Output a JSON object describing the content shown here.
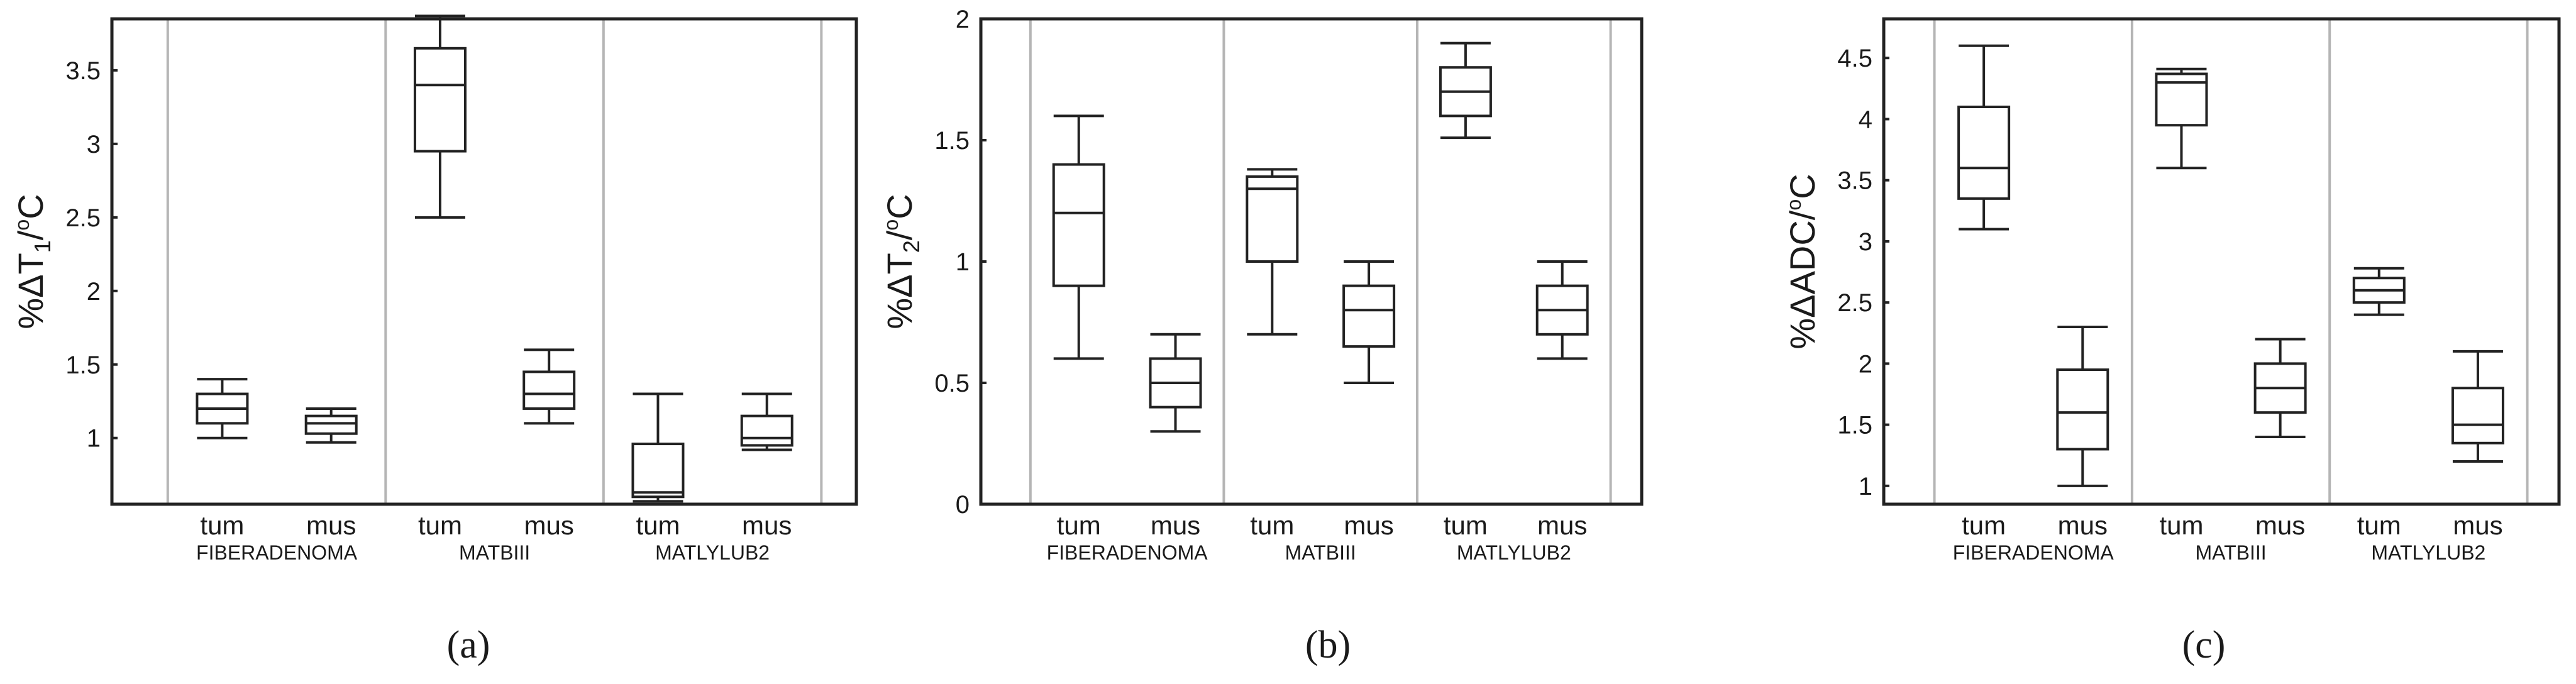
{
  "chart_data": [
    {
      "type": "box",
      "panel_label": "(a)",
      "ylabel": "%ΔT1/°C",
      "ylabel_parts": [
        "%ΔT",
        "1",
        "/",
        "o",
        "C"
      ],
      "ylim": [
        0.55,
        3.85
      ],
      "yticks": [
        {
          "value": 1,
          "label": "1"
        },
        {
          "value": 1.5,
          "label": "1.5"
        },
        {
          "value": 2,
          "label": "2"
        },
        {
          "value": 2.5,
          "label": "2.5"
        },
        {
          "value": 3,
          "label": "3"
        },
        {
          "value": 3.5,
          "label": "3.5"
        }
      ],
      "groups": [
        "FIBERADENOMA",
        "MATBIII",
        "MATLYLUB2"
      ],
      "subcategories": [
        "tum",
        "mus"
      ],
      "boxes": [
        {
          "group": "FIBERADENOMA",
          "label": "tum",
          "whisker_low": 1.0,
          "q1": 1.1,
          "median": 1.2,
          "q3": 1.3,
          "whisker_high": 1.4
        },
        {
          "group": "FIBERADENOMA",
          "label": "mus",
          "whisker_low": 0.97,
          "q1": 1.03,
          "median": 1.1,
          "q3": 1.15,
          "whisker_high": 1.2
        },
        {
          "group": "MATBIII",
          "label": "tum",
          "whisker_low": 2.5,
          "q1": 2.95,
          "median": 3.4,
          "q3": 3.65,
          "whisker_high": 3.87
        },
        {
          "group": "MATBIII",
          "label": "mus",
          "whisker_low": 1.1,
          "q1": 1.2,
          "median": 1.3,
          "q3": 1.45,
          "whisker_high": 1.6
        },
        {
          "group": "MATLYLUB2",
          "label": "tum",
          "whisker_low": 0.57,
          "q1": 0.6,
          "median": 0.63,
          "q3": 0.96,
          "whisker_high": 1.3
        },
        {
          "group": "MATLYLUB2",
          "label": "mus",
          "whisker_low": 0.92,
          "q1": 0.95,
          "median": 1.0,
          "q3": 1.15,
          "whisker_high": 1.3
        }
      ]
    },
    {
      "type": "box",
      "panel_label": "(b)",
      "ylabel": "%ΔT2/°C",
      "ylabel_parts": [
        "%ΔT",
        "2",
        "/",
        "o",
        "C"
      ],
      "ylim": [
        0,
        2
      ],
      "yticks": [
        {
          "value": 0,
          "label": "0"
        },
        {
          "value": 0.5,
          "label": "0.5"
        },
        {
          "value": 1,
          "label": "1"
        },
        {
          "value": 1.5,
          "label": "1.5"
        },
        {
          "value": 2,
          "label": "2"
        }
      ],
      "groups": [
        "FIBERADENOMA",
        "MATBIII",
        "MATLYLUB2"
      ],
      "subcategories": [
        "tum",
        "mus"
      ],
      "boxes": [
        {
          "group": "FIBERADENOMA",
          "label": "tum",
          "whisker_low": 0.6,
          "q1": 0.9,
          "median": 1.2,
          "q3": 1.4,
          "whisker_high": 1.6
        },
        {
          "group": "FIBERADENOMA",
          "label": "mus",
          "whisker_low": 0.3,
          "q1": 0.4,
          "median": 0.5,
          "q3": 0.6,
          "whisker_high": 0.7
        },
        {
          "group": "MATBIII",
          "label": "tum",
          "whisker_low": 0.7,
          "q1": 1.0,
          "median": 1.3,
          "q3": 1.35,
          "whisker_high": 1.38
        },
        {
          "group": "MATBIII",
          "label": "mus",
          "whisker_low": 0.5,
          "q1": 0.65,
          "median": 0.8,
          "q3": 0.9,
          "whisker_high": 1.0
        },
        {
          "group": "MATLYLUB2",
          "label": "tum",
          "whisker_low": 1.51,
          "q1": 1.6,
          "median": 1.7,
          "q3": 1.8,
          "whisker_high": 1.9
        },
        {
          "group": "MATLYLUB2",
          "label": "mus",
          "whisker_low": 0.6,
          "q1": 0.7,
          "median": 0.8,
          "q3": 0.9,
          "whisker_high": 1.0
        }
      ]
    },
    {
      "type": "box",
      "panel_label": "(c)",
      "ylabel": "%ΔADC/°C",
      "ylabel_parts": [
        "%ΔADC",
        "",
        "/",
        "o",
        "C"
      ],
      "ylim": [
        0.85,
        4.82
      ],
      "yticks": [
        {
          "value": 1,
          "label": "1"
        },
        {
          "value": 1.5,
          "label": "1.5"
        },
        {
          "value": 2,
          "label": "2"
        },
        {
          "value": 2.5,
          "label": "2.5"
        },
        {
          "value": 3,
          "label": "3"
        },
        {
          "value": 3.5,
          "label": "3.5"
        },
        {
          "value": 4,
          "label": "4"
        },
        {
          "value": 4.5,
          "label": "4.5"
        }
      ],
      "groups": [
        "FIBERADENOMA",
        "MATBIII",
        "MATLYLUB2"
      ],
      "subcategories": [
        "tum",
        "mus"
      ],
      "boxes": [
        {
          "group": "FIBERADENOMA",
          "label": "tum",
          "whisker_low": 3.1,
          "q1": 3.35,
          "median": 3.6,
          "q3": 4.1,
          "whisker_high": 4.6
        },
        {
          "group": "FIBERADENOMA",
          "label": "mus",
          "whisker_low": 1.0,
          "q1": 1.3,
          "median": 1.6,
          "q3": 1.95,
          "whisker_high": 2.3
        },
        {
          "group": "MATBIII",
          "label": "tum",
          "whisker_low": 3.6,
          "q1": 3.95,
          "median": 4.3,
          "q3": 4.37,
          "whisker_high": 4.41
        },
        {
          "group": "MATBIII",
          "label": "mus",
          "whisker_low": 1.4,
          "q1": 1.6,
          "median": 1.8,
          "q3": 2.0,
          "whisker_high": 2.2
        },
        {
          "group": "MATLYLUB2",
          "label": "tum",
          "whisker_low": 2.4,
          "q1": 2.5,
          "median": 2.6,
          "q3": 2.7,
          "whisker_high": 2.78
        },
        {
          "group": "MATLYLUB2",
          "label": "mus",
          "whisker_low": 1.2,
          "q1": 1.35,
          "median": 1.5,
          "q3": 1.8,
          "whisker_high": 2.1
        }
      ]
    }
  ]
}
